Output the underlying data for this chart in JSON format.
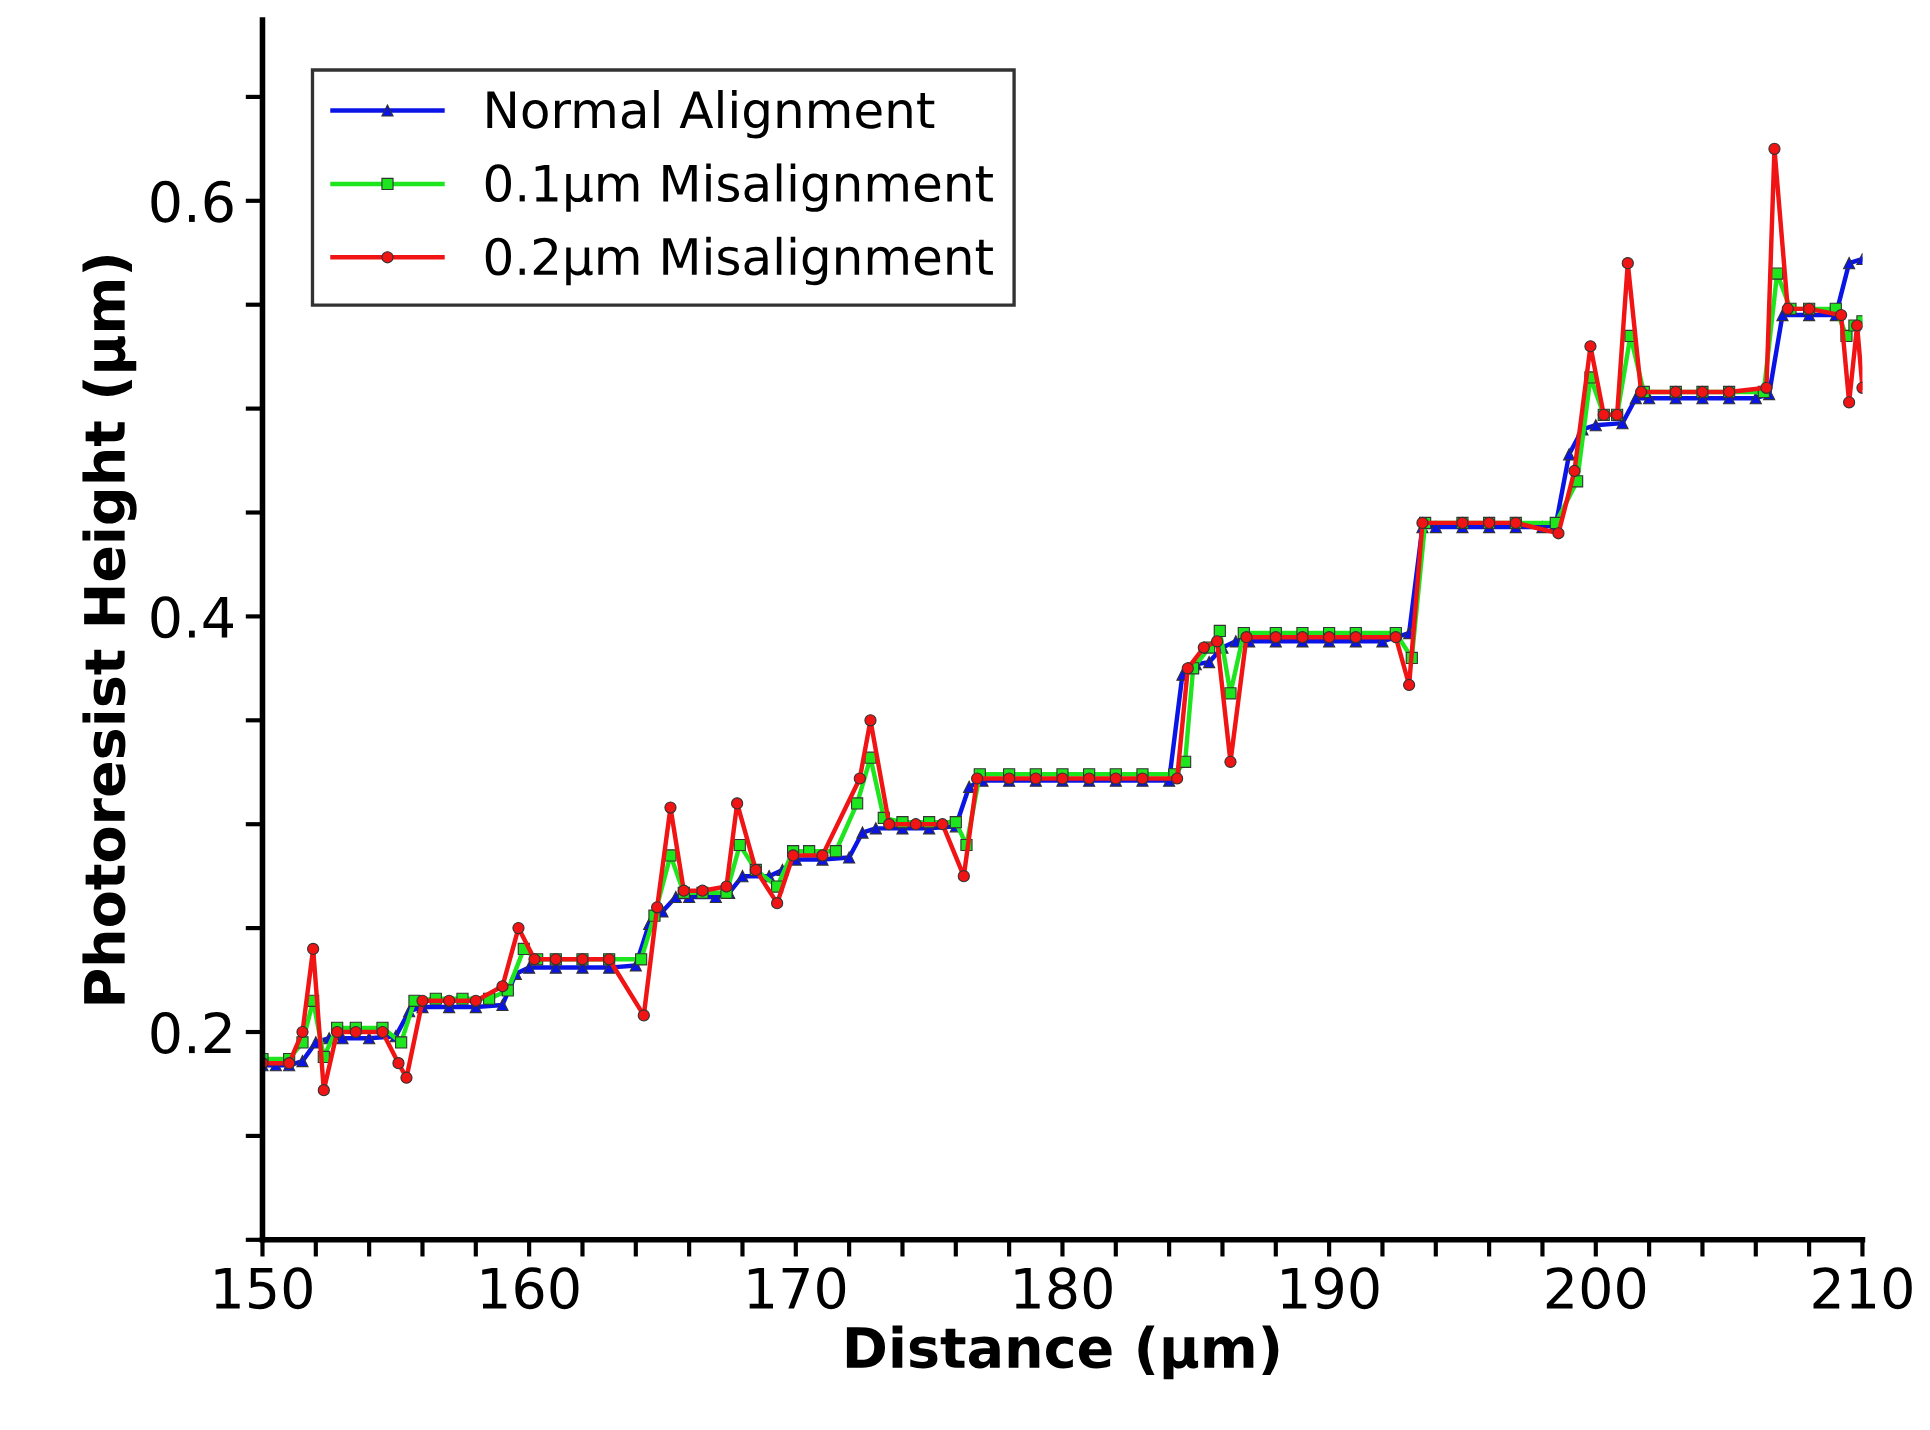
{
  "chart_data": {
    "type": "line",
    "xlabel": "Distance (µm)",
    "ylabel": "Photoresist Height (µm)",
    "xlim": [
      150,
      210
    ],
    "ylim": [
      0.1,
      0.687
    ],
    "xticks": [
      150,
      {
        "value": 152,
        "label": null
      },
      {
        "value": 154,
        "label": null
      },
      {
        "value": 156,
        "label": null
      },
      {
        "value": 158,
        "label": null
      },
      160,
      {
        "value": 162,
        "label": null
      },
      {
        "value": 164,
        "label": null
      },
      {
        "value": 166,
        "label": null
      },
      {
        "value": 168,
        "label": null
      },
      170,
      {
        "value": 172,
        "label": null
      },
      {
        "value": 174,
        "label": null
      },
      {
        "value": 176,
        "label": null
      },
      {
        "value": 178,
        "label": null
      },
      180,
      {
        "value": 182,
        "label": null
      },
      {
        "value": 184,
        "label": null
      },
      {
        "value": 186,
        "label": null
      },
      {
        "value": 188,
        "label": null
      },
      190,
      {
        "value": 192,
        "label": null
      },
      {
        "value": 194,
        "label": null
      },
      {
        "value": 196,
        "label": null
      },
      {
        "value": 198,
        "label": null
      },
      200,
      {
        "value": 202,
        "label": null
      },
      {
        "value": 204,
        "label": null
      },
      {
        "value": 206,
        "label": null
      },
      {
        "value": 208,
        "label": null
      },
      210
    ],
    "yticks": [
      {
        "value": 0.1,
        "label": null
      },
      {
        "value": 0.15,
        "label": null
      },
      0.2,
      {
        "value": 0.25,
        "label": null
      },
      {
        "value": 0.3,
        "label": null
      },
      {
        "value": 0.35,
        "label": null
      },
      0.4,
      {
        "value": 0.45,
        "label": null
      },
      {
        "value": 0.5,
        "label": null
      },
      {
        "value": 0.55,
        "label": null
      },
      0.6,
      {
        "value": 0.65,
        "label": null
      }
    ],
    "grid": false,
    "legend": "top left",
    "line_style": "solid",
    "series": [
      {
        "name": "Normal Alignment",
        "color": "#0a14e6",
        "marker": "triangle",
        "x": [
          150,
          150.5,
          151,
          151.5,
          152,
          152.5,
          153,
          154,
          155,
          155.5,
          156,
          157,
          158,
          159,
          159.5,
          160,
          161,
          162,
          163,
          164,
          164.5,
          165,
          165.5,
          166,
          167,
          167.5,
          168,
          169,
          169.5,
          170,
          171,
          172,
          172.5,
          173,
          174,
          175,
          176,
          176.5,
          177,
          178,
          179,
          180,
          181,
          182,
          183,
          184,
          184.5,
          185,
          185.5,
          186,
          186.5,
          187,
          188,
          189,
          190,
          191,
          192,
          193,
          193.5,
          194,
          195,
          196,
          197,
          198,
          198.5,
          199,
          199.5,
          200,
          201,
          201.5,
          202,
          203,
          204,
          205,
          206,
          206.5,
          207,
          208,
          209,
          209.5,
          210
        ],
        "values": [
          0.184,
          0.184,
          0.184,
          0.186,
          0.195,
          0.197,
          0.197,
          0.197,
          0.198,
          0.21,
          0.212,
          0.212,
          0.212,
          0.213,
          0.228,
          0.231,
          0.231,
          0.231,
          0.231,
          0.232,
          0.252,
          0.258,
          0.265,
          0.265,
          0.265,
          0.267,
          0.275,
          0.275,
          0.278,
          0.283,
          0.283,
          0.284,
          0.296,
          0.298,
          0.298,
          0.298,
          0.299,
          0.318,
          0.321,
          0.321,
          0.321,
          0.321,
          0.321,
          0.321,
          0.321,
          0.321,
          0.372,
          0.377,
          0.378,
          0.385,
          0.388,
          0.388,
          0.388,
          0.388,
          0.388,
          0.388,
          0.388,
          0.392,
          0.443,
          0.443,
          0.443,
          0.443,
          0.443,
          0.443,
          0.444,
          0.478,
          0.49,
          0.492,
          0.493,
          0.505,
          0.505,
          0.505,
          0.505,
          0.505,
          0.505,
          0.507,
          0.545,
          0.545,
          0.545,
          0.57,
          0.572
        ]
      },
      {
        "name": "0.1µm Misalignment",
        "color": "#1ee61e",
        "marker": "square",
        "x": [
          150,
          151,
          151.5,
          151.9,
          152.3,
          152.8,
          153.5,
          154.5,
          155.2,
          155.7,
          156.5,
          157.5,
          158.5,
          159.2,
          159.8,
          160.3,
          161,
          162,
          163,
          164.2,
          164.7,
          165.3,
          165.8,
          166.5,
          167.4,
          167.9,
          168.5,
          169.3,
          169.9,
          170.5,
          171.5,
          172.3,
          172.8,
          173.3,
          174,
          175,
          176,
          176.4,
          176.9,
          178,
          179,
          180,
          181,
          182,
          183,
          184.2,
          184.6,
          184.9,
          185.5,
          185.9,
          186.3,
          186.8,
          188,
          189,
          190,
          191,
          192.5,
          193.1,
          193.6,
          195,
          196,
          197,
          198.5,
          199.3,
          199.8,
          200.3,
          200.8,
          201.3,
          201.8,
          203,
          204,
          205,
          206.3,
          206.8,
          207.3,
          208,
          209,
          209.4,
          209.7,
          210
        ],
        "values": [
          0.187,
          0.187,
          0.195,
          0.215,
          0.188,
          0.202,
          0.202,
          0.202,
          0.195,
          0.215,
          0.216,
          0.216,
          0.216,
          0.22,
          0.24,
          0.235,
          0.235,
          0.235,
          0.235,
          0.235,
          0.256,
          0.285,
          0.267,
          0.267,
          0.267,
          0.29,
          0.278,
          0.27,
          0.287,
          0.287,
          0.287,
          0.31,
          0.332,
          0.303,
          0.301,
          0.301,
          0.301,
          0.29,
          0.324,
          0.324,
          0.324,
          0.324,
          0.324,
          0.324,
          0.324,
          0.324,
          0.33,
          0.375,
          0.385,
          0.393,
          0.363,
          0.392,
          0.392,
          0.392,
          0.392,
          0.392,
          0.392,
          0.38,
          0.445,
          0.445,
          0.445,
          0.445,
          0.445,
          0.465,
          0.515,
          0.497,
          0.497,
          0.535,
          0.508,
          0.508,
          0.508,
          0.508,
          0.508,
          0.565,
          0.548,
          0.548,
          0.548,
          0.535,
          0.54,
          0.542
        ]
      },
      {
        "name": "0.2µm Misalignment",
        "color": "#f01414",
        "marker": "circle",
        "x": [
          150,
          151,
          151.5,
          151.9,
          152.3,
          152.8,
          153.5,
          154.5,
          155.1,
          155.4,
          156,
          157,
          158,
          159,
          159.6,
          160.2,
          161,
          162,
          163,
          164.3,
          164.8,
          165.3,
          165.8,
          166.5,
          167.4,
          167.8,
          168.5,
          169.3,
          169.9,
          171,
          172.4,
          172.8,
          173.5,
          174.5,
          175.5,
          176.3,
          176.8,
          178,
          179,
          180,
          181,
          182,
          183,
          184.3,
          184.7,
          185.3,
          185.8,
          186.3,
          186.9,
          188,
          189,
          190,
          191,
          192.5,
          193,
          193.5,
          195,
          196,
          197,
          198.6,
          199.2,
          199.8,
          200.3,
          200.8,
          201.2,
          201.7,
          203,
          204,
          205,
          206.4,
          206.7,
          207.2,
          208,
          209.2,
          209.5,
          209.8,
          210
        ],
        "values": [
          0.185,
          0.185,
          0.2,
          0.24,
          0.172,
          0.2,
          0.2,
          0.2,
          0.185,
          0.178,
          0.215,
          0.215,
          0.215,
          0.222,
          0.25,
          0.235,
          0.235,
          0.235,
          0.235,
          0.208,
          0.26,
          0.308,
          0.268,
          0.268,
          0.27,
          0.31,
          0.278,
          0.262,
          0.285,
          0.285,
          0.322,
          0.35,
          0.3,
          0.3,
          0.3,
          0.275,
          0.322,
          0.322,
          0.322,
          0.322,
          0.322,
          0.322,
          0.322,
          0.322,
          0.375,
          0.385,
          0.388,
          0.33,
          0.39,
          0.39,
          0.39,
          0.39,
          0.39,
          0.39,
          0.367,
          0.445,
          0.445,
          0.445,
          0.445,
          0.44,
          0.47,
          0.53,
          0.497,
          0.497,
          0.57,
          0.508,
          0.508,
          0.508,
          0.508,
          0.51,
          0.625,
          0.548,
          0.548,
          0.545,
          0.503,
          0.54,
          0.51
        ]
      }
    ]
  }
}
